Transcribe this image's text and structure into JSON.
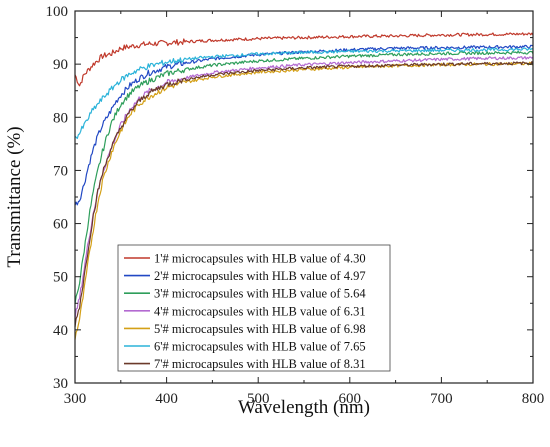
{
  "chart_data": {
    "type": "line",
    "xlabel": "Wavelength (nm)",
    "ylabel": "Transmittance (%)",
    "xlim": [
      300,
      800
    ],
    "ylim": [
      30,
      100
    ],
    "xticks": [
      "300",
      "400",
      "500",
      "600",
      "700",
      "800"
    ],
    "yticks": [
      "30",
      "40",
      "50",
      "60",
      "70",
      "80",
      "90",
      "100"
    ],
    "grid": false,
    "legend_position": "bottom-right",
    "series": [
      {
        "name": "1'# microcapsules with HLB value of 4.30",
        "color": "#c0392b",
        "x": [
          300,
          305,
          310,
          315,
          320,
          330,
          340,
          350,
          360,
          370,
          380,
          400,
          420,
          450,
          500,
          550,
          600,
          650,
          700,
          750,
          800
        ],
        "y": [
          88,
          86,
          88,
          89,
          90,
          91.5,
          92,
          93,
          93.3,
          93.6,
          93.8,
          94,
          94.2,
          94.5,
          94.8,
          95,
          95.2,
          95.3,
          95.5,
          95.6,
          95.7
        ]
      },
      {
        "name": "2'# microcapsules with HLB value of 4.97",
        "color": "#2148c4",
        "x": [
          300,
          305,
          310,
          315,
          320,
          325,
          330,
          335,
          340,
          345,
          350,
          360,
          370,
          380,
          400,
          420,
          450,
          500,
          550,
          600,
          650,
          700,
          750,
          800
        ],
        "y": [
          63.5,
          64.5,
          67.5,
          71,
          74,
          76.5,
          78.5,
          80,
          81.5,
          83,
          84.2,
          86,
          87.3,
          88.3,
          89.5,
          90.2,
          91,
          91.8,
          92.3,
          92.7,
          93,
          93.1,
          93.2,
          93.3
        ]
      },
      {
        "name": "3'# microcapsules with HLB value of 5.64",
        "color": "#2e9e5b",
        "x": [
          300,
          305,
          310,
          315,
          320,
          325,
          330,
          335,
          340,
          350,
          360,
          370,
          380,
          400,
          420,
          450,
          500,
          550,
          600,
          650,
          700,
          750,
          800
        ],
        "y": [
          45,
          49,
          55,
          61,
          66,
          70,
          73.5,
          76.5,
          79,
          82.5,
          84.5,
          85.8,
          86.8,
          88.2,
          89,
          89.8,
          90.6,
          91.1,
          91.5,
          91.8,
          92,
          92.1,
          92.2
        ]
      },
      {
        "name": "4'# microcapsules with HLB value of 6.31",
        "color": "#b36ad1",
        "x": [
          300,
          305,
          310,
          315,
          320,
          325,
          330,
          340,
          350,
          360,
          370,
          380,
          400,
          420,
          450,
          500,
          550,
          600,
          650,
          700,
          750,
          800
        ],
        "y": [
          42.5,
          46,
          51.5,
          57,
          62,
          66,
          69.5,
          74.5,
          78.5,
          81.5,
          83.5,
          84.8,
          86.5,
          87.4,
          88.4,
          89.3,
          89.9,
          90.3,
          90.6,
          90.9,
          91.1,
          91.2
        ]
      },
      {
        "name": "5'# microcapsules with HLB value of 6.98",
        "color": "#d4a017",
        "x": [
          300,
          305,
          310,
          315,
          320,
          325,
          330,
          340,
          350,
          360,
          370,
          380,
          400,
          420,
          450,
          500,
          550,
          600,
          650,
          700,
          750,
          800
        ],
        "y": [
          38.5,
          42,
          47.5,
          53.5,
          59,
          64,
          68,
          73.5,
          77.5,
          80.5,
          82.5,
          83.8,
          85.6,
          86.6,
          87.6,
          88.5,
          89,
          89.4,
          89.7,
          89.9,
          90,
          90.1
        ]
      },
      {
        "name": "6'# microcapsules with HLB value of 7.65",
        "color": "#2bb3d9",
        "x": [
          300,
          305,
          310,
          315,
          320,
          325,
          330,
          335,
          340,
          345,
          350,
          360,
          370,
          380,
          400,
          420,
          450,
          500,
          550,
          600,
          650,
          700,
          750,
          800
        ],
        "y": [
          76,
          77,
          78.5,
          80,
          81.5,
          82.5,
          83.5,
          84.5,
          85.3,
          86.3,
          87,
          88.2,
          89,
          89.6,
          90.4,
          90.9,
          91.4,
          91.9,
          92.2,
          92.4,
          92.5,
          92.6,
          92.7,
          92.8
        ]
      },
      {
        "name": "7'# microcapsules with HLB value of 8.31",
        "color": "#6b3a2a",
        "x": [
          300,
          305,
          310,
          315,
          320,
          325,
          330,
          340,
          350,
          360,
          370,
          380,
          400,
          420,
          450,
          500,
          550,
          600,
          650,
          700,
          750,
          800
        ],
        "y": [
          41,
          44.5,
          50,
          56,
          61.5,
          66,
          69.5,
          74.5,
          78,
          81,
          83,
          84.5,
          86.2,
          87.1,
          88,
          88.8,
          89.3,
          89.6,
          89.8,
          90,
          90.1,
          90.2
        ]
      }
    ]
  }
}
